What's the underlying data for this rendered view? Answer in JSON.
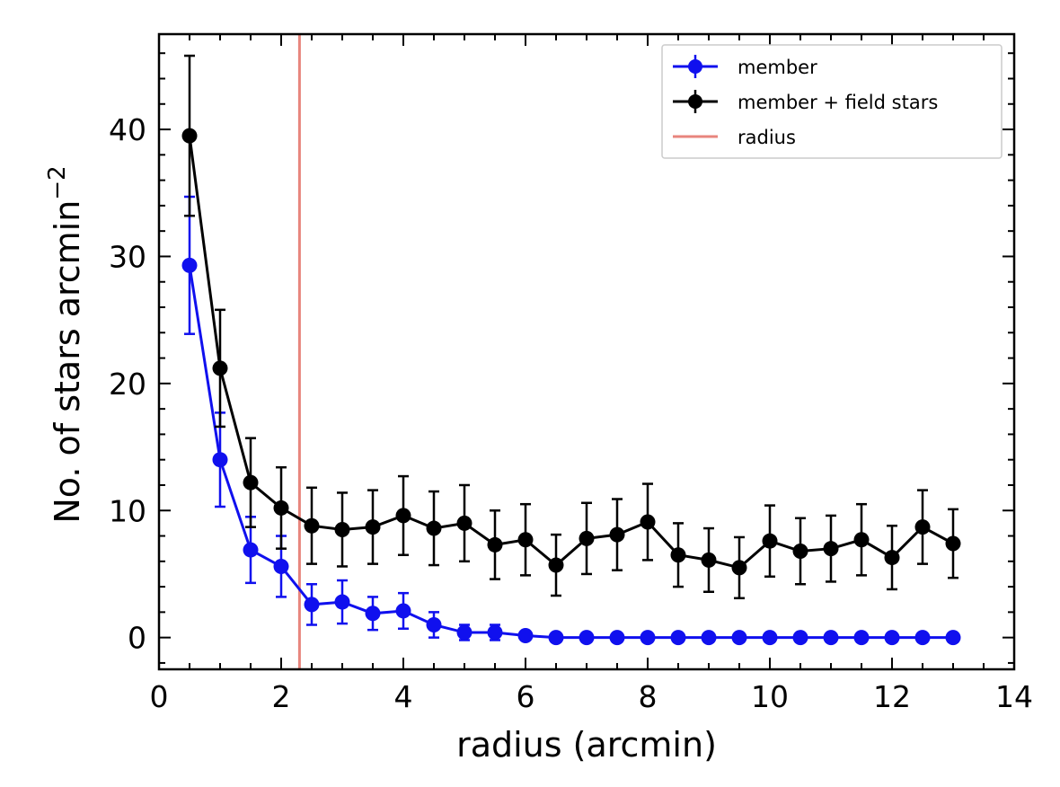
{
  "chart_data": {
    "type": "line",
    "xlabel": "radius (arcmin)",
    "ylabel_main": "No. of stars  arcmin",
    "ylabel_sup": "−2",
    "xlim": [
      0,
      14
    ],
    "ylim": [
      -2.5,
      47.5
    ],
    "xticks": [
      0,
      2,
      4,
      6,
      8,
      10,
      12,
      14
    ],
    "xtick_labels": [
      "0",
      "2",
      "4",
      "6",
      "8",
      "10",
      "12",
      "14"
    ],
    "yticks": [
      0,
      10,
      20,
      30,
      40
    ],
    "ytick_labels": [
      "0",
      "10",
      "20",
      "30",
      "40"
    ],
    "grid": false,
    "legend_position": "top-right",
    "radius_line": {
      "name": "radius",
      "x": 2.3,
      "color": "#e8857d"
    },
    "series": [
      {
        "name": "member",
        "color": "#1010ee",
        "x": [
          0.5,
          1.0,
          1.5,
          2.0,
          2.5,
          3.0,
          3.5,
          4.0,
          4.5,
          5.0,
          5.5,
          6.0,
          6.5,
          7.0,
          7.5,
          8.0,
          8.5,
          9.0,
          9.5,
          10.0,
          10.5,
          11.0,
          11.5,
          12.0,
          12.5,
          13.0
        ],
        "y": [
          29.3,
          14.0,
          6.9,
          5.6,
          2.6,
          2.8,
          1.9,
          2.1,
          1.0,
          0.4,
          0.4,
          0.15,
          0.0,
          0.0,
          0.0,
          0.0,
          0.0,
          0.0,
          0.0,
          0.0,
          0.0,
          0.0,
          0.0,
          0.0,
          0.0,
          0.0
        ],
        "yerr": [
          5.4,
          3.7,
          2.6,
          2.4,
          1.6,
          1.7,
          1.3,
          1.4,
          1.0,
          0.6,
          0.6,
          0.3,
          0.0,
          0.0,
          0.0,
          0.0,
          0.0,
          0.0,
          0.0,
          0.0,
          0.0,
          0.0,
          0.0,
          0.0,
          0.0,
          0.0
        ]
      },
      {
        "name": "member + field stars",
        "color": "#000000",
        "x": [
          0.5,
          1.0,
          1.5,
          2.0,
          2.5,
          3.0,
          3.5,
          4.0,
          4.5,
          5.0,
          5.5,
          6.0,
          6.5,
          7.0,
          7.5,
          8.0,
          8.5,
          9.0,
          9.5,
          10.0,
          10.5,
          11.0,
          11.5,
          12.0,
          12.5,
          13.0
        ],
        "y": [
          39.5,
          21.2,
          12.2,
          10.2,
          8.8,
          8.5,
          8.7,
          9.6,
          8.6,
          9.0,
          7.3,
          7.7,
          5.7,
          7.8,
          8.1,
          9.1,
          6.5,
          6.1,
          5.5,
          7.6,
          6.8,
          7.0,
          7.7,
          6.3,
          8.7,
          7.4
        ],
        "yerr": [
          6.3,
          4.6,
          3.5,
          3.2,
          3.0,
          2.9,
          2.9,
          3.1,
          2.9,
          3.0,
          2.7,
          2.8,
          2.4,
          2.8,
          2.8,
          3.0,
          2.5,
          2.5,
          2.4,
          2.8,
          2.6,
          2.6,
          2.8,
          2.5,
          2.9,
          2.7
        ]
      }
    ]
  }
}
